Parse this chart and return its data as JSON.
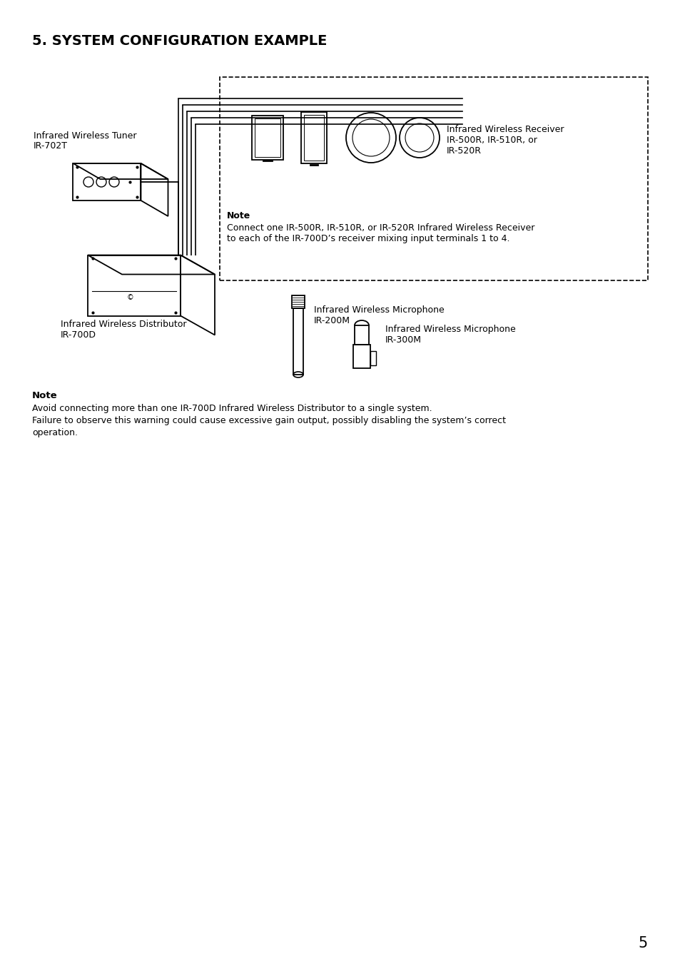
{
  "title": "5. SYSTEM CONFIGURATION EXAMPLE",
  "page_number": "5",
  "background_color": "#ffffff",
  "text_color": "#000000",
  "title_fontsize": 14,
  "body_fontsize": 9,
  "labels": {
    "tuner_line1": "Infrared Wireless Tuner",
    "tuner_line2": "IR-702T",
    "distributor_line1": "Infrared Wireless Distributor",
    "distributor_line2": "IR-700D",
    "receiver_line1": "Infrared Wireless Receiver",
    "receiver_line2": "IR-500R, IR-510R, or",
    "receiver_line3": "IR-520R",
    "mic200_line1": "Infrared Wireless Microphone",
    "mic200_line2": "IR-200M",
    "mic300_line1": "Infrared Wireless Microphone",
    "mic300_line2": "IR-300M",
    "note_inner_bold": "Note",
    "note_inner_text1": "Connect one IR-500R, IR-510R, or IR-520R Infrared Wireless Receiver",
    "note_inner_text2": "to each of the IR-700D’s receiver mixing input terminals 1 to 4.",
    "note_outer_bold": "Note",
    "note_outer_line1": "Avoid connecting more than one IR-700D Infrared Wireless Distributor to a single system.",
    "note_outer_line2": "Failure to observe this warning could cause excessive gain output, possibly disabling the system’s correct",
    "note_outer_line3": "operation."
  }
}
